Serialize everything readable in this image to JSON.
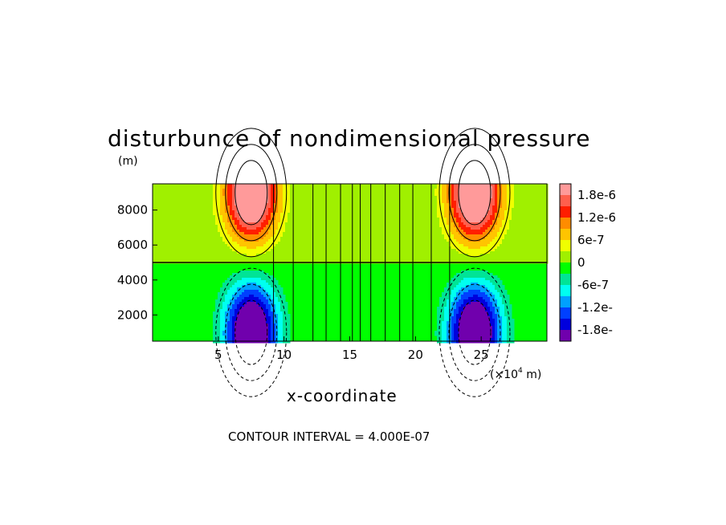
{
  "chart_data": {
    "type": "heatmap",
    "title": "disturbunce of nondimensional pressure",
    "xlabel": "x-coordinate",
    "x_unit": "(×10⁴ m)",
    "x_unit_base": "(×10",
    "x_unit_exp": "4",
    "x_unit_tail": " m)",
    "y_unit": "(m)",
    "xlim": [
      0,
      30
    ],
    "ylim": [
      500,
      9500
    ],
    "x_ticks": [
      5,
      10,
      15,
      20,
      25
    ],
    "x_tick_labels": [
      "5",
      "10",
      "15",
      "20",
      "25"
    ],
    "y_ticks": [
      2000,
      4000,
      6000,
      8000
    ],
    "y_tick_labels": [
      "2000",
      "4000",
      "6000",
      "8000"
    ],
    "annotation": "CONTOUR INTERVAL = 4.000E-07",
    "contour_interval": 4e-07,
    "colorbar": {
      "levels": [
        1.8e-06,
        1.2e-06,
        6e-07,
        0,
        -6e-07,
        -1.2e-06,
        -1.8e-06
      ],
      "labels": [
        "1.8e-6",
        "1.2e-6",
        "6e-7",
        "0",
        "-6e-7",
        "-1.2e-",
        "-1.8e-"
      ],
      "colors": [
        "#ff9a9a",
        "#ff5f4d",
        "#ff1e00",
        "#ff8c00",
        "#ffc400",
        "#f0ff00",
        "#a0f000",
        "#00ff00",
        "#00e496",
        "#00fff0",
        "#00a0ff",
        "#0040ff",
        "#0000dd",
        "#7000ad"
      ]
    },
    "extrema": [
      {
        "x": 7.5,
        "y": 9000,
        "value": 1.8e-06
      },
      {
        "x": 24.5,
        "y": 9000,
        "value": 1.8e-06
      },
      {
        "x": 7.5,
        "y": 1000,
        "value": -1.8e-06
      },
      {
        "x": 24.5,
        "y": 1000,
        "value": -1.8e-06
      }
    ],
    "background_value": 0,
    "grid": false
  }
}
